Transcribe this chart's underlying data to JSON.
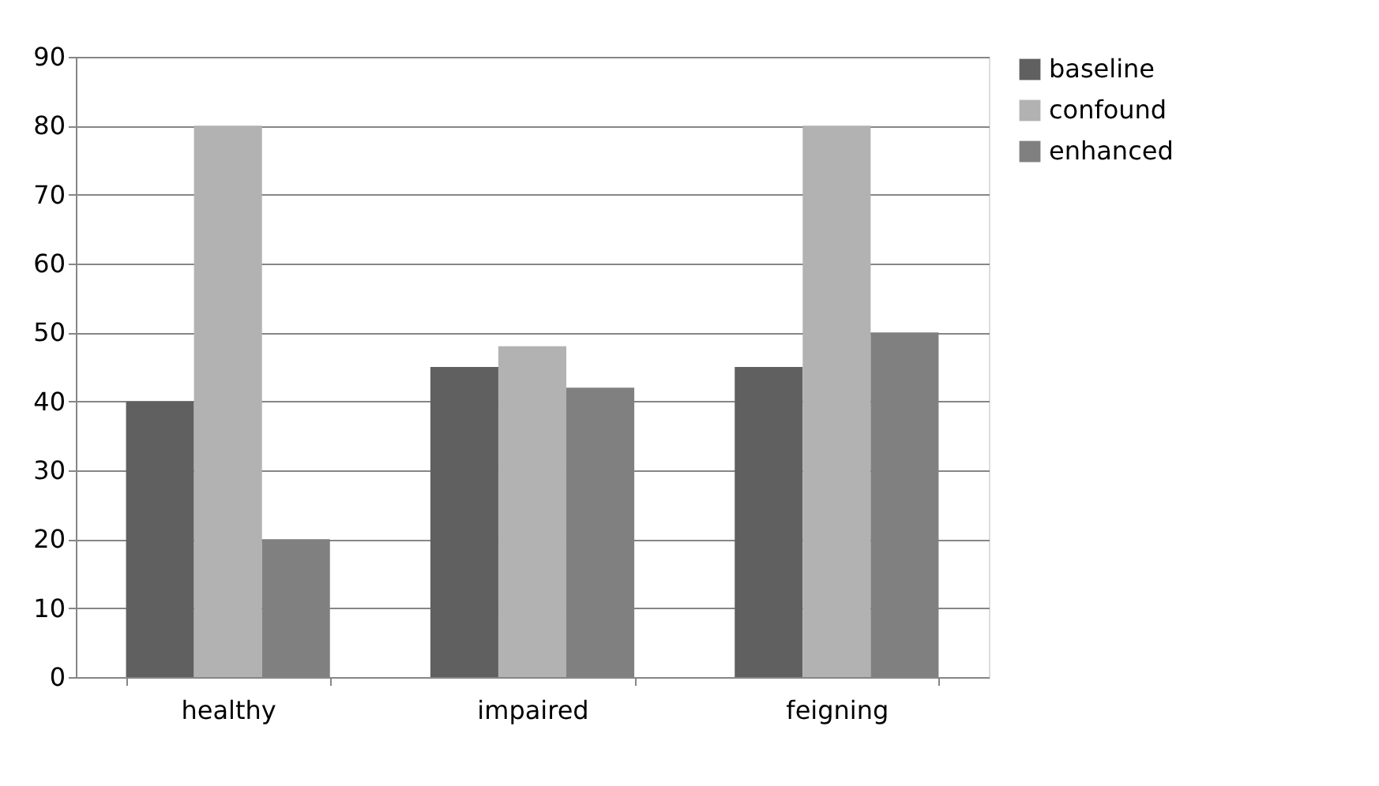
{
  "chart_data": {
    "type": "bar",
    "categories": [
      "healthy",
      "impaired",
      "feigning"
    ],
    "series": [
      {
        "name": "baseline",
        "color": "#606060",
        "values": [
          40,
          45,
          45
        ]
      },
      {
        "name": "confound",
        "color": "#b2b2b2",
        "values": [
          80,
          48,
          80
        ]
      },
      {
        "name": "enhanced",
        "color": "#808080",
        "values": [
          20,
          42,
          50
        ]
      }
    ],
    "ylim": [
      0,
      90
    ],
    "yticks": [
      0,
      10,
      20,
      30,
      40,
      50,
      60,
      70,
      80,
      90
    ],
    "grid": "y",
    "legend": "right"
  }
}
